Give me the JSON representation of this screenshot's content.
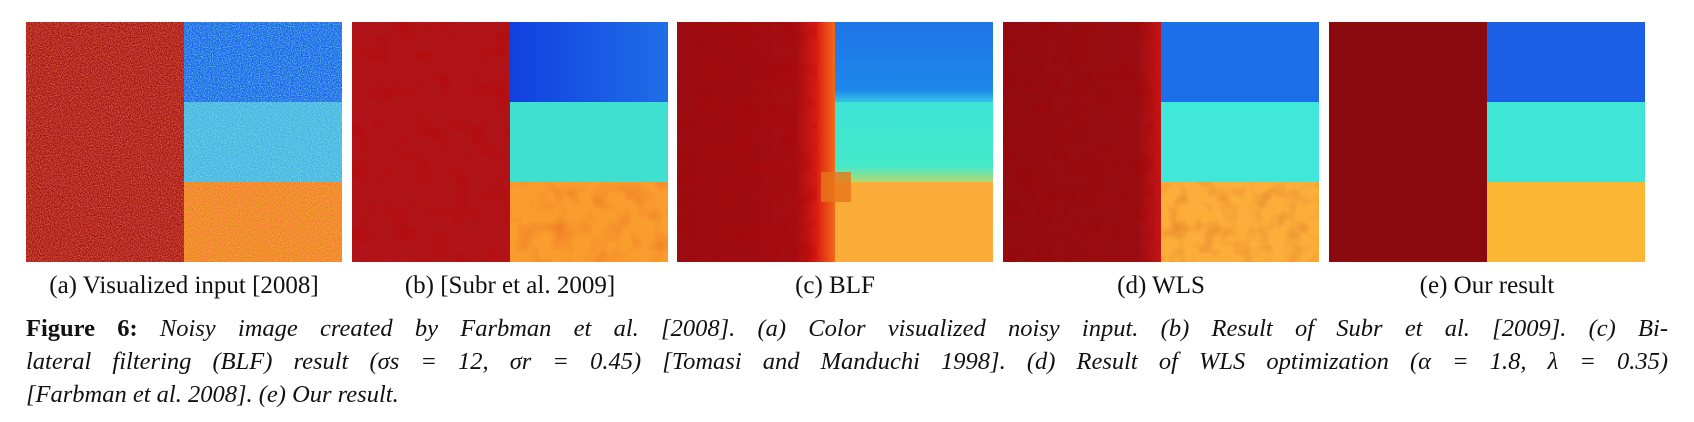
{
  "panels": [
    {
      "id": "a",
      "caption": "(a) Visualized input [2008]"
    },
    {
      "id": "b",
      "caption": "(b) [Subr et al. 2009]"
    },
    {
      "id": "c",
      "caption": "(c) BLF"
    },
    {
      "id": "d",
      "caption": "(d) WLS"
    },
    {
      "id": "e",
      "caption": "(e) Our result"
    }
  ],
  "figure": {
    "label": "Figure 6:",
    "line1": "Noisy image created by Farbman et al. [2008]. (a) Color visualized noisy input. (b) Result of Subr et al. [2009]. (c) Bi-",
    "line2": "lateral filtering (BLF) result (σs = 12, σr = 0.45) [Tomasi and Manduchi 1998]. (d) Result of WLS optimization (α = 1.8, λ = 0.35)",
    "line3": "[Farbman et al. 2008]. (e) Our result."
  },
  "colors": {
    "dark_red": "#8b0a0f",
    "red": "#b31317",
    "blue": "#1a5fe6",
    "cyan": "#3fe6d6",
    "orange": "#fbb733"
  }
}
